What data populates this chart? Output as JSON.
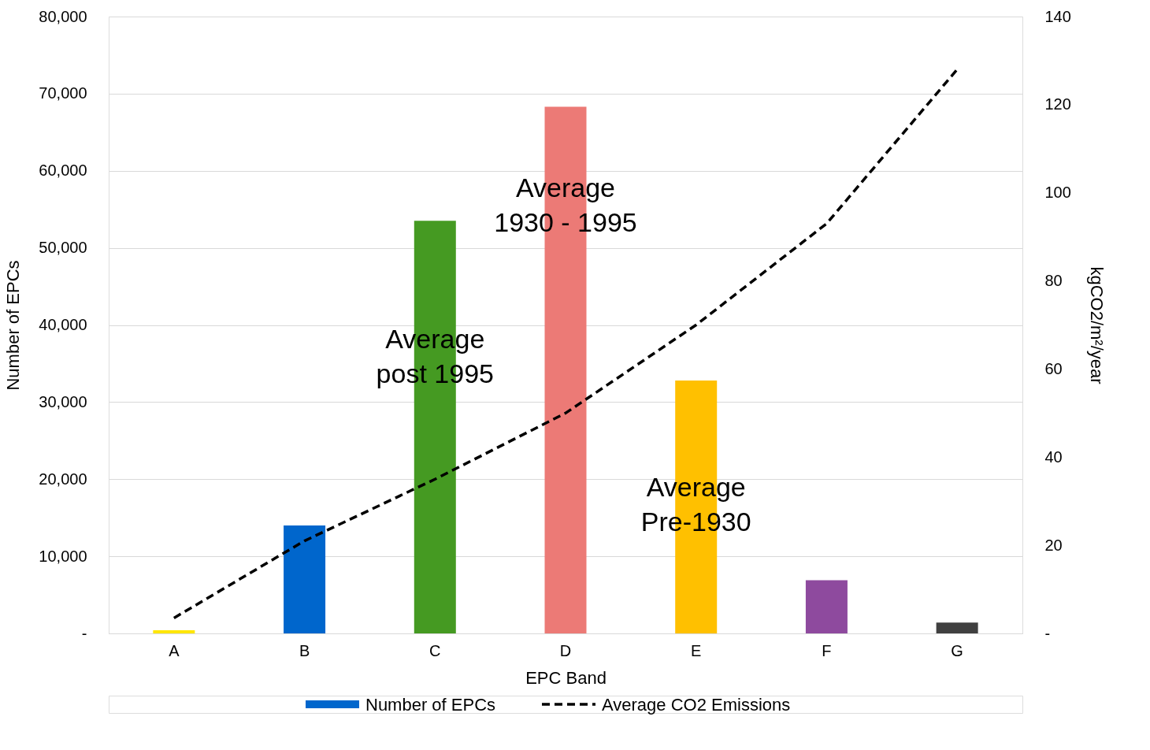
{
  "chart_data": {
    "type": "bar",
    "xlabel": "EPC Band",
    "ylabel": "Number of EPCs",
    "y2label": "kgCO2/m²/year",
    "categories": [
      "A",
      "B",
      "C",
      "D",
      "E",
      "F",
      "G"
    ],
    "series": [
      {
        "name": "Number of EPCs",
        "color": "#0066cc",
        "colors": [
          "#ffe600",
          "#0066cc",
          "#459a22",
          "#ec7a76",
          "#ffc000",
          "#8e4a9e",
          "#404040"
        ],
        "values": [
          400,
          14000,
          53500,
          68300,
          32800,
          6900,
          1400
        ]
      },
      {
        "name": "Average CO2 Emissions",
        "type": "line",
        "axis": "y2",
        "color": "#000000",
        "line_style": "dashed",
        "values": [
          3.5,
          21,
          35,
          50,
          70,
          93,
          128
        ]
      }
    ],
    "ylim": [
      0,
      80000
    ],
    "yticks": [
      {
        "value": 0,
        "label": "-"
      },
      {
        "value": 10000,
        "label": "10,000"
      },
      {
        "value": 20000,
        "label": "20,000"
      },
      {
        "value": 30000,
        "label": "30,000"
      },
      {
        "value": 40000,
        "label": "40,000"
      },
      {
        "value": 50000,
        "label": "50,000"
      },
      {
        "value": 60000,
        "label": "60,000"
      },
      {
        "value": 70000,
        "label": "70,000"
      },
      {
        "value": 80000,
        "label": "80,000"
      }
    ],
    "y2lim": [
      0,
      140
    ],
    "y2ticks": [
      {
        "value": 0,
        "label": "-"
      },
      20,
      40,
      60,
      80,
      100,
      120,
      140
    ],
    "annotations": [
      "Average\npost 1995",
      "Average\n1930 - 1995",
      "Average\nPre-1930"
    ],
    "grid": "y",
    "legend": "bottom"
  }
}
